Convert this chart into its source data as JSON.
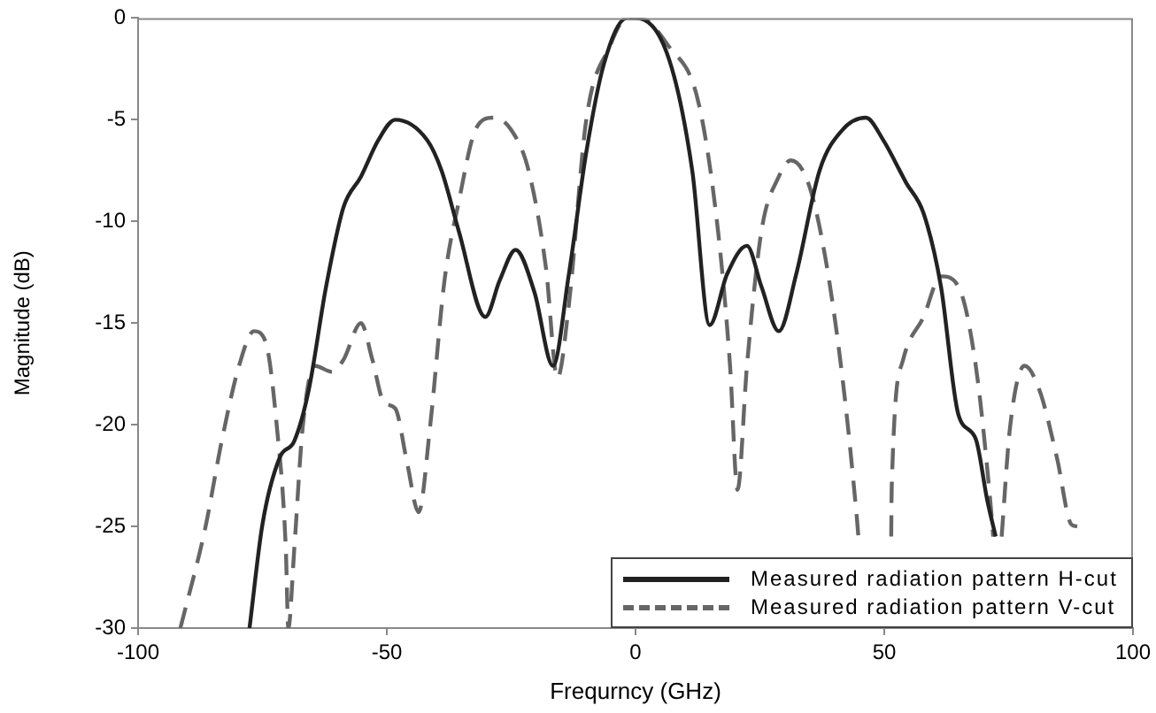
{
  "chart_data": {
    "type": "line",
    "xlabel": "Frequrncy (GHz)",
    "ylabel": "Magnitude (dB)",
    "xlim": [
      -100,
      100
    ],
    "xticks": [
      -100,
      -50,
      0,
      50,
      100
    ],
    "ylim": [
      -30,
      0
    ],
    "yticks": [
      -30,
      -25,
      -20,
      -15,
      -10,
      -5,
      0
    ],
    "grid": false,
    "legend": "bottom right",
    "marker": "none",
    "series": [
      {
        "name": "Measured radiation pattern H-cut",
        "color": "#222222",
        "line_style": "solid",
        "x": [
          -77.6,
          -75.0,
          -71.5,
          -68.6,
          -65.7,
          -62.2,
          -58.7,
          -55.2,
          -51.7,
          -48.3,
          -41.9,
          -39.0,
          -35.5,
          -30.2,
          -27.3,
          -24.1,
          -20.3,
          -16.6,
          -13.4,
          -9.9,
          -6.4,
          -1.7,
          0,
          6.7,
          11.4,
          14.9,
          18.4,
          22.4,
          25.3,
          28.8,
          32.3,
          37.0,
          41.6,
          46.3,
          49.8,
          54.4,
          57.9,
          61.4,
          64.9,
          68.4,
          70.7,
          72.4
        ],
        "values": [
          -30,
          -24.9,
          -21.6,
          -20.8,
          -18.3,
          -13.2,
          -9.3,
          -7.8,
          -6.0,
          -5.0,
          -6.0,
          -7.5,
          -10.5,
          -14.7,
          -12.9,
          -11.4,
          -13.5,
          -17.1,
          -12.6,
          -6.6,
          -2.3,
          0,
          0,
          -2.0,
          -7.5,
          -15.1,
          -12.6,
          -11.2,
          -13.2,
          -15.4,
          -12.6,
          -7.5,
          -5.5,
          -4.9,
          -6.0,
          -8.1,
          -9.6,
          -13.2,
          -19.5,
          -20.7,
          -23.7,
          -25.5
        ]
      },
      {
        "name": "Measured radiation pattern V-cut",
        "color": "#666666",
        "line_style": "dashed",
        "x": [
          -91.5,
          -86.6,
          -83.1,
          -79.7,
          -76.7,
          -74.4,
          -72.1,
          -70.3,
          -69.8,
          -68.6,
          -66.9,
          -64.5,
          -61.0,
          -58.7,
          -55.2,
          -52.9,
          -50.6,
          -48.3,
          -45.9,
          -43.6,
          -41.3,
          -38.4,
          -35.5,
          -32.0,
          -28.5,
          -25.0,
          -21.5,
          -18.0,
          -15.7,
          -13.4,
          -9.9,
          -5.2,
          -1.7,
          0.9,
          6.7,
          12.6,
          16.6,
          19.0,
          20.5,
          22.4,
          25.3,
          28.8,
          31.2,
          34.7,
          38.1,
          41.6,
          44.5,
          44.8,
          48.0,
          51.4,
          51.5,
          53.8,
          57.9,
          61.4,
          64.9,
          68.4,
          71.3,
          71.9,
          72.8,
          73.6,
          75.3,
          78.2,
          81.2,
          84.7,
          87.6,
          88.8
        ],
        "values": [
          -30,
          -25.2,
          -20.7,
          -17.1,
          -15.4,
          -15.9,
          -20.1,
          -26.1,
          -30,
          -26.1,
          -20.1,
          -17.1,
          -17.4,
          -16.8,
          -15.0,
          -16.8,
          -18.9,
          -19.2,
          -21.9,
          -24.3,
          -20.1,
          -12.9,
          -9.0,
          -5.4,
          -4.9,
          -5.5,
          -7.5,
          -12.3,
          -17.7,
          -14.1,
          -5.0,
          -1.4,
          0,
          0,
          -1.4,
          -4.1,
          -10.5,
          -17.1,
          -23.2,
          -17.1,
          -10.5,
          -7.8,
          -7.0,
          -8.1,
          -11.7,
          -17.7,
          -24.6,
          -25.5,
          null,
          -25.5,
          -23.1,
          -16.8,
          -14.7,
          -12.7,
          -13.2,
          -17.1,
          -23.7,
          -25.5,
          null,
          -25.5,
          -20.1,
          -17.1,
          -18.3,
          -21.6,
          -24.9,
          -25.0
        ]
      }
    ]
  }
}
